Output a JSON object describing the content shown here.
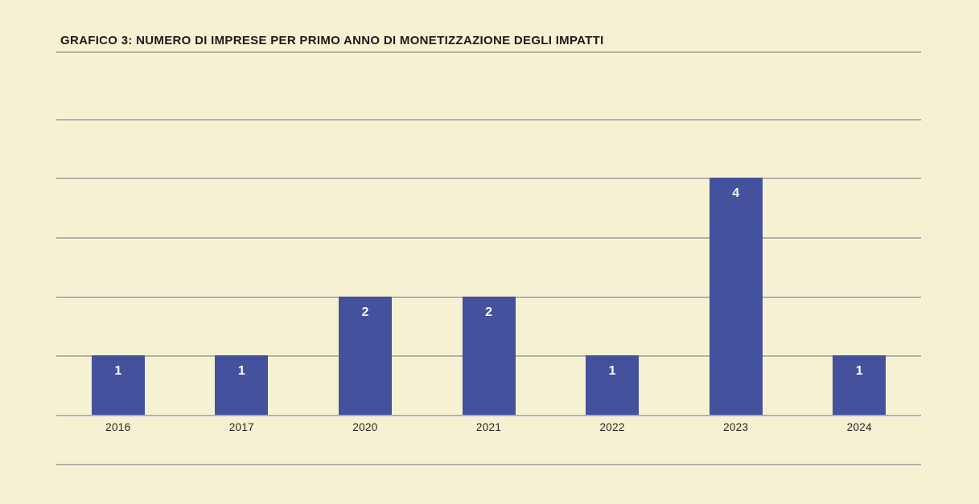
{
  "chart_data": {
    "type": "bar",
    "title": "GRAFICO 3: NUMERO DI IMPRESE PER PRIMO ANNO DI MONETIZZAZIONE DEGLI IMPATTI",
    "categories": [
      "2016",
      "2017",
      "2020",
      "2021",
      "2022",
      "2023",
      "2024"
    ],
    "values": [
      1,
      1,
      2,
      2,
      1,
      4,
      1
    ],
    "xlabel": "",
    "ylabel": "",
    "ylim": [
      0,
      5
    ],
    "gridline_values": [
      0,
      1,
      2,
      3,
      4,
      5
    ],
    "grid": "horizontal only, no y-axis tick labels",
    "legend_position": "none",
    "value_labels": "white numerals inside top of each bar",
    "colors": {
      "background": "#f6f1d2",
      "bar_fill": "#44519c",
      "value_label": "#fdfdf7",
      "gridline": "#b1b1a9",
      "title_text": "#1c1c18",
      "axis_label_text": "#26261f"
    }
  }
}
